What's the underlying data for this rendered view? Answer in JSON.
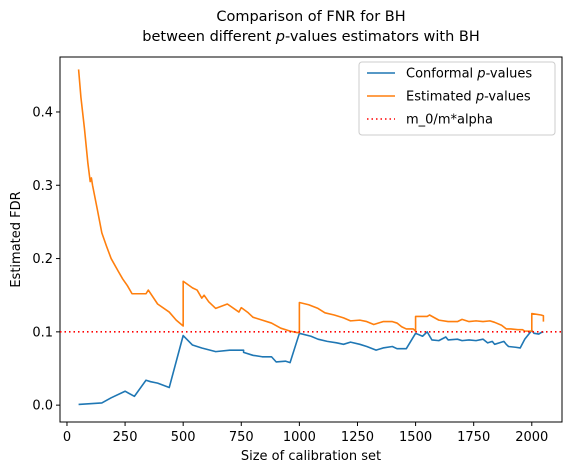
{
  "chart_data": {
    "type": "line",
    "title": [
      "Comparison of FNR for BH",
      "between different p-values estimators with BH"
    ],
    "xlabel": "Size of calibration set",
    "ylabel": "Estimated FDR",
    "xlim": [
      -30,
      2130
    ],
    "ylim": [
      -0.023,
      0.475
    ],
    "xticks": [
      0,
      250,
      500,
      750,
      1000,
      1250,
      1500,
      1750,
      2000
    ],
    "xtick_labels": [
      "0",
      "250",
      "500",
      "750",
      "1000",
      "1250",
      "1500",
      "1750",
      "2000"
    ],
    "yticks": [
      0.0,
      0.1,
      0.2,
      0.3,
      0.4
    ],
    "ytick_labels": [
      "0.0",
      "0.1",
      "0.2",
      "0.3",
      "0.4"
    ],
    "grid": false,
    "legend_position": "top-right",
    "series": [
      {
        "name": "Conformal p-values",
        "color": "#1f77b4",
        "style": "solid",
        "points": [
          [
            50,
            0.001
          ],
          [
            150,
            0.003
          ],
          [
            190,
            0.01
          ],
          [
            250,
            0.019
          ],
          [
            290,
            0.012
          ],
          [
            340,
            0.034
          ],
          [
            360,
            0.032
          ],
          [
            390,
            0.03
          ],
          [
            440,
            0.024
          ],
          [
            500,
            0.095
          ],
          [
            540,
            0.082
          ],
          [
            580,
            0.078
          ],
          [
            640,
            0.073
          ],
          [
            700,
            0.075
          ],
          [
            760,
            0.075
          ],
          [
            760,
            0.072
          ],
          [
            800,
            0.068
          ],
          [
            840,
            0.066
          ],
          [
            880,
            0.066
          ],
          [
            900,
            0.059
          ],
          [
            940,
            0.06
          ],
          [
            960,
            0.058
          ],
          [
            1000,
            0.098
          ],
          [
            1050,
            0.094
          ],
          [
            1080,
            0.09
          ],
          [
            1120,
            0.087
          ],
          [
            1160,
            0.085
          ],
          [
            1190,
            0.083
          ],
          [
            1220,
            0.086
          ],
          [
            1260,
            0.083
          ],
          [
            1290,
            0.08
          ],
          [
            1330,
            0.075
          ],
          [
            1360,
            0.078
          ],
          [
            1400,
            0.08
          ],
          [
            1420,
            0.077
          ],
          [
            1450,
            0.077
          ],
          [
            1460,
            0.077
          ],
          [
            1500,
            0.098
          ],
          [
            1530,
            0.094
          ],
          [
            1550,
            0.1
          ],
          [
            1570,
            0.089
          ],
          [
            1600,
            0.088
          ],
          [
            1630,
            0.093
          ],
          [
            1640,
            0.089
          ],
          [
            1680,
            0.09
          ],
          [
            1700,
            0.088
          ],
          [
            1730,
            0.089
          ],
          [
            1760,
            0.088
          ],
          [
            1790,
            0.09
          ],
          [
            1810,
            0.085
          ],
          [
            1830,
            0.087
          ],
          [
            1840,
            0.083
          ],
          [
            1860,
            0.085
          ],
          [
            1880,
            0.087
          ],
          [
            1890,
            0.083
          ],
          [
            1900,
            0.08
          ],
          [
            1930,
            0.079
          ],
          [
            1950,
            0.078
          ],
          [
            1970,
            0.09
          ],
          [
            2000,
            0.102
          ],
          [
            2010,
            0.098
          ],
          [
            2030,
            0.097
          ],
          [
            2040,
            0.099
          ],
          [
            2050,
            0.1
          ]
        ]
      },
      {
        "name": "Estimated p-values",
        "color": "#ff7f0e",
        "style": "solid",
        "points": [
          [
            50,
            0.458
          ],
          [
            60,
            0.42
          ],
          [
            75,
            0.378
          ],
          [
            90,
            0.33
          ],
          [
            100,
            0.305
          ],
          [
            105,
            0.31
          ],
          [
            110,
            0.3
          ],
          [
            130,
            0.268
          ],
          [
            150,
            0.235
          ],
          [
            170,
            0.217
          ],
          [
            190,
            0.2
          ],
          [
            220,
            0.183
          ],
          [
            240,
            0.172
          ],
          [
            260,
            0.163
          ],
          [
            280,
            0.152
          ],
          [
            310,
            0.152
          ],
          [
            340,
            0.152
          ],
          [
            350,
            0.157
          ],
          [
            390,
            0.138
          ],
          [
            440,
            0.127
          ],
          [
            470,
            0.116
          ],
          [
            500,
            0.108
          ],
          [
            500,
            0.169
          ],
          [
            540,
            0.16
          ],
          [
            560,
            0.157
          ],
          [
            580,
            0.146
          ],
          [
            590,
            0.15
          ],
          [
            610,
            0.141
          ],
          [
            640,
            0.132
          ],
          [
            690,
            0.138
          ],
          [
            740,
            0.127
          ],
          [
            750,
            0.133
          ],
          [
            780,
            0.126
          ],
          [
            800,
            0.12
          ],
          [
            840,
            0.116
          ],
          [
            880,
            0.112
          ],
          [
            920,
            0.105
          ],
          [
            960,
            0.101
          ],
          [
            990,
            0.099
          ],
          [
            1000,
            0.099
          ],
          [
            1000,
            0.14
          ],
          [
            1040,
            0.137
          ],
          [
            1080,
            0.132
          ],
          [
            1110,
            0.126
          ],
          [
            1150,
            0.123
          ],
          [
            1190,
            0.119
          ],
          [
            1220,
            0.115
          ],
          [
            1260,
            0.116
          ],
          [
            1290,
            0.114
          ],
          [
            1320,
            0.11
          ],
          [
            1360,
            0.114
          ],
          [
            1400,
            0.114
          ],
          [
            1420,
            0.112
          ],
          [
            1440,
            0.107
          ],
          [
            1460,
            0.104
          ],
          [
            1490,
            0.104
          ],
          [
            1500,
            0.101
          ],
          [
            1500,
            0.121
          ],
          [
            1550,
            0.121
          ],
          [
            1560,
            0.123
          ],
          [
            1600,
            0.116
          ],
          [
            1640,
            0.114
          ],
          [
            1680,
            0.114
          ],
          [
            1700,
            0.117
          ],
          [
            1730,
            0.114
          ],
          [
            1760,
            0.115
          ],
          [
            1790,
            0.114
          ],
          [
            1820,
            0.115
          ],
          [
            1840,
            0.113
          ],
          [
            1870,
            0.109
          ],
          [
            1890,
            0.104
          ],
          [
            1910,
            0.104
          ],
          [
            1940,
            0.103
          ],
          [
            1960,
            0.103
          ],
          [
            1970,
            0.101
          ],
          [
            2000,
            0.101
          ],
          [
            2000,
            0.125
          ],
          [
            2040,
            0.123
          ],
          [
            2050,
            0.122
          ],
          [
            2050,
            0.114
          ]
        ]
      },
      {
        "name": "m_0/m*alpha",
        "color": "#ff0000",
        "style": "dotted",
        "y": 0.1
      }
    ]
  }
}
